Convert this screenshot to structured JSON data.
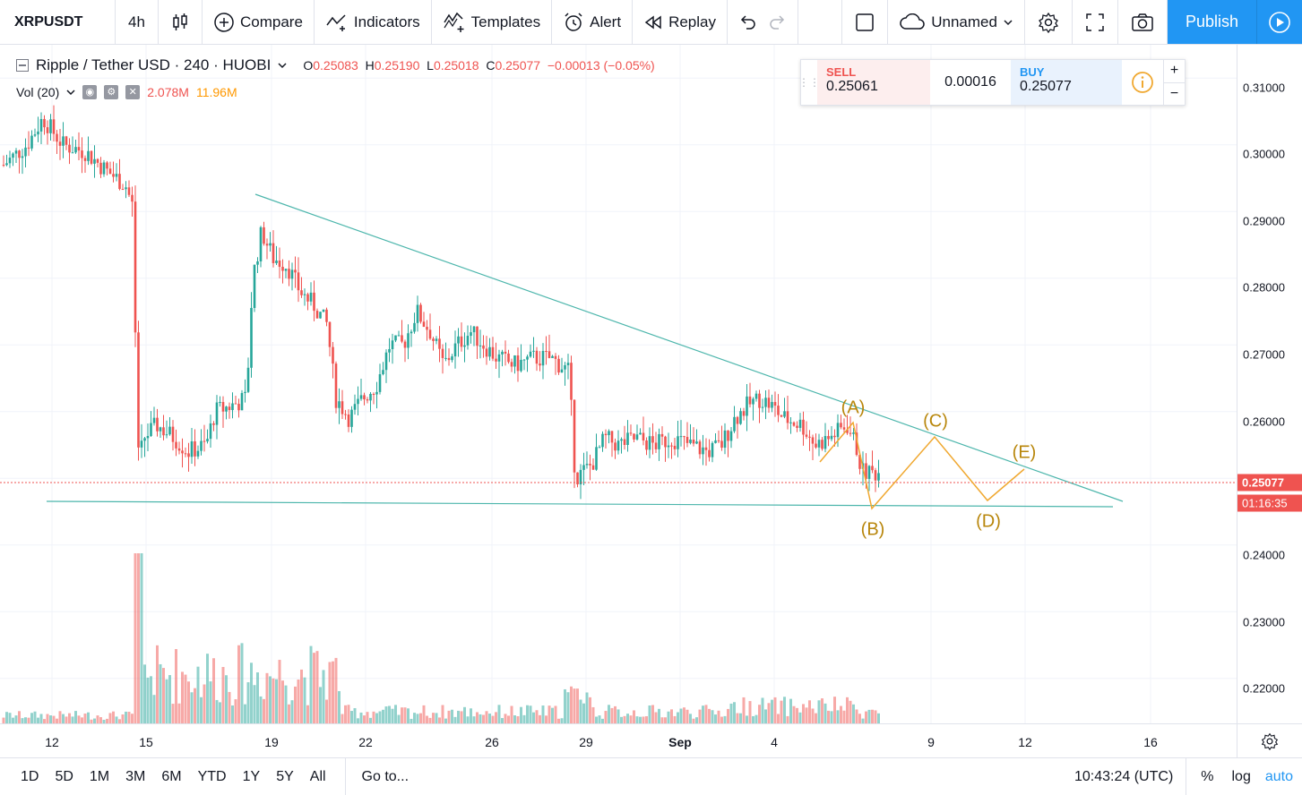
{
  "toolbar": {
    "symbol": "XRPUSDT",
    "interval": "4h",
    "compare": "Compare",
    "indicators": "Indicators",
    "templates": "Templates",
    "alert": "Alert",
    "replay": "Replay",
    "layout_name": "Unnamed",
    "publish": "Publish"
  },
  "legend": {
    "title": "Ripple / Tether USD · 240 · HUOBI",
    "open_label": "O",
    "open": "0.25083",
    "high_label": "H",
    "high": "0.25190",
    "low_label": "L",
    "low": "0.25018",
    "close_label": "C",
    "close": "0.25077",
    "change": "−0.00013 (−0.05%)",
    "volume_label": "Vol (20)",
    "volume": "2.078M",
    "volume_ma": "11.96M"
  },
  "trade": {
    "sell_label": "SELL",
    "sell_price": "0.25061",
    "spread": "0.00016",
    "buy_label": "BUY",
    "buy_price": "0.25077"
  },
  "price_axis": {
    "ticks": [
      "0.31000",
      "0.30000",
      "0.29000",
      "0.28000",
      "0.27000",
      "0.26000",
      "0.24000",
      "0.23000",
      "0.22000"
    ],
    "current_price": "0.25077",
    "countdown": "01:16:35"
  },
  "time_axis": {
    "ticks": [
      "12",
      "15",
      "19",
      "22",
      "26",
      "29",
      "Sep",
      "4",
      "9",
      "12",
      "16"
    ]
  },
  "waves": [
    "(A)",
    "(B)",
    "(C)",
    "(D)",
    "(E)"
  ],
  "bottom": {
    "ranges": [
      "1D",
      "5D",
      "1M",
      "3M",
      "6M",
      "YTD",
      "1Y",
      "5Y",
      "All"
    ],
    "goto": "Go to...",
    "clock": "10:43:24 (UTC)",
    "percent": "%",
    "log": "log",
    "auto": "auto"
  },
  "colors": {
    "up": "#26a69a",
    "down": "#ef5350",
    "accent": "#2196f3",
    "wave": "#f0a830",
    "trend": "#4db6ac"
  },
  "chart_data": {
    "type": "candlestick",
    "symbol": "XRPUSDT",
    "interval": "4h",
    "exchange": "HUOBI",
    "ylim": [
      0.215,
      0.315
    ],
    "candles": []
  }
}
